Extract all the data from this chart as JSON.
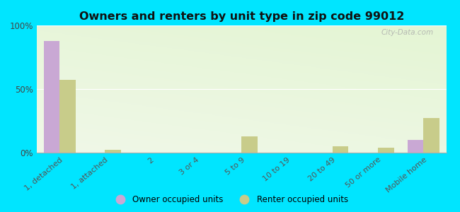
{
  "title": "Owners and renters by unit type in zip code 99012",
  "categories": [
    "1, detached",
    "1, attached",
    "2",
    "3 or 4",
    "5 to 9",
    "10 to 19",
    "20 to 49",
    "50 or more",
    "Mobile home"
  ],
  "owner_values": [
    88,
    0,
    0,
    0,
    0,
    0,
    0,
    0,
    10
  ],
  "renter_values": [
    57,
    2,
    0,
    0,
    13,
    0,
    5,
    4,
    27
  ],
  "owner_color": "#c9a8d4",
  "renter_color": "#c8cc8a",
  "background_color": "#00e5ff",
  "ylim": [
    0,
    100
  ],
  "yticks": [
    0,
    50,
    100
  ],
  "ytick_labels": [
    "0%",
    "50%",
    "100%"
  ],
  "bar_width": 0.35,
  "legend_owner": "Owner occupied units",
  "legend_renter": "Renter occupied units",
  "watermark": "City-Data.com"
}
